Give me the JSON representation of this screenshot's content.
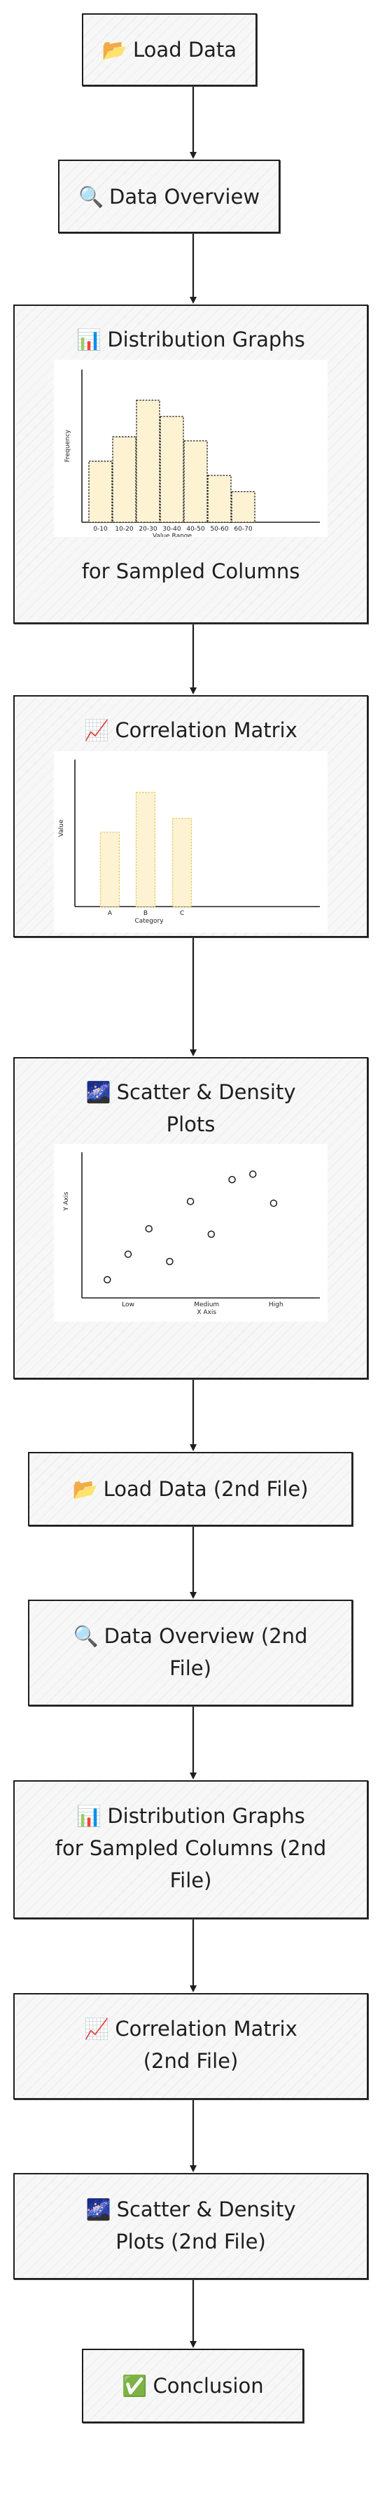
{
  "nodes": [
    {
      "id": "load-data",
      "icon": "📂",
      "label": "Load Data"
    },
    {
      "id": "data-overview",
      "icon": "🔍",
      "label": "Data Overview"
    },
    {
      "id": "distribution-graphs",
      "icon": "📊",
      "label": "Distribution Graphs",
      "label2": "for Sampled Columns"
    },
    {
      "id": "correlation-matrix",
      "icon": "📈",
      "label": "Correlation Matrix"
    },
    {
      "id": "scatter-density",
      "icon": "🌌",
      "label": "Scatter & Density",
      "label2": "Plots"
    },
    {
      "id": "load-data-2",
      "icon": "📂",
      "label": "Load Data (2nd File)"
    },
    {
      "id": "data-overview-2",
      "icon": "🔍",
      "label": "Data Overview (2nd",
      "label2": "File)"
    },
    {
      "id": "distribution-graphs-2",
      "icon": "📊",
      "label": "Distribution Graphs",
      "label2": "for Sampled Columns (2nd",
      "label3": "File)"
    },
    {
      "id": "correlation-matrix-2",
      "icon": "📈",
      "label": "Correlation Matrix",
      "label2": "(2nd File)"
    },
    {
      "id": "scatter-density-2",
      "icon": "🌌",
      "label": "Scatter & Density",
      "label2": "Plots (2nd File)"
    },
    {
      "id": "conclusion",
      "icon": "✅",
      "label": "Conclusion"
    }
  ],
  "chart_data": [
    {
      "type": "bar",
      "categories": [
        "0-10",
        "10-20",
        "20-30",
        "30-40",
        "40-50",
        "50-60",
        "60-70"
      ],
      "values": [
        3,
        4.2,
        6,
        5.2,
        4,
        2.3,
        1.5
      ],
      "xlabel": "Value Range",
      "ylabel": "Frequency",
      "ylim": [
        0,
        7.5
      ],
      "fill": "#fdf3d3",
      "stroke": "#1e1e1e"
    },
    {
      "type": "bar",
      "categories": [
        "A",
        "B",
        "C"
      ],
      "values": [
        4.3,
        6.6,
        5.1
      ],
      "xlabel": "Category",
      "ylabel": "Value",
      "ylim": [
        0,
        8.5
      ],
      "fill": "#fdf3d3",
      "stroke": "#e6c860"
    },
    {
      "type": "scatter",
      "x": [
        0.55,
        1.0,
        1.45,
        1.9,
        2.35,
        2.8,
        3.25,
        3.7,
        4.15
      ],
      "y": [
        1.0,
        2.4,
        3.8,
        2.0,
        5.3,
        3.5,
        6.5,
        6.8,
        5.2
      ],
      "x_tick_labels": [
        "Low",
        "Medium",
        "High"
      ],
      "x_tick_positions": [
        1.0,
        2.7,
        4.2
      ],
      "xlabel": "X Axis",
      "ylabel": "Y Axis",
      "xlim": [
        0,
        5
      ],
      "ylim": [
        0,
        8
      ]
    }
  ]
}
